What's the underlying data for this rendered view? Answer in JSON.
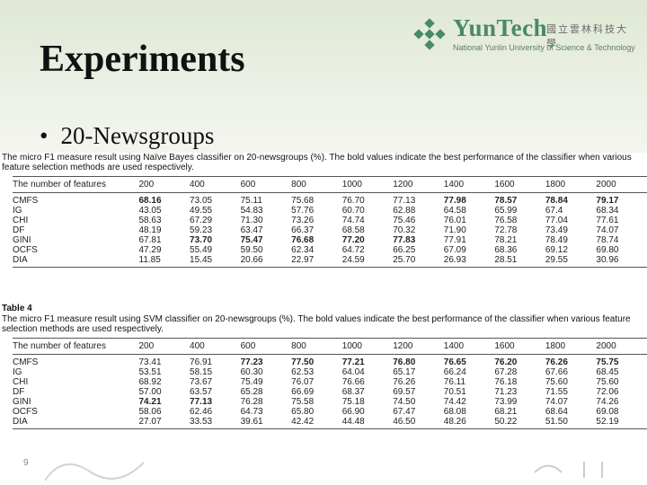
{
  "slide": {
    "title": "Experiments",
    "bullet": "20-Newsgroups",
    "page_number": "9",
    "logo": {
      "brand": "YunTech",
      "chinese": "國立雲林科技大學",
      "english": "National Yunlin University of Science & Technology"
    }
  },
  "table1": {
    "label": "",
    "caption": "The micro F1 measure result using Naïve Bayes classifier on 20-newsgroups (%). The bold values indicate the best performance of the classifier when various feature selection methods are used respectively.",
    "columns": [
      "The number of features",
      "200",
      "400",
      "600",
      "800",
      "1000",
      "1200",
      "1400",
      "1600",
      "1800",
      "2000"
    ],
    "rows": [
      {
        "method": "CMFS",
        "values": [
          "68.16",
          "73.05",
          "75.11",
          "75.68",
          "76.70",
          "77.13",
          "77.98",
          "78.57",
          "78.84",
          "79.17"
        ],
        "bold": [
          true,
          false,
          false,
          false,
          false,
          false,
          true,
          true,
          true,
          true
        ]
      },
      {
        "method": "IG",
        "values": [
          "43.05",
          "49.55",
          "54.83",
          "57.76",
          "60.70",
          "62.88",
          "64.58",
          "65.99",
          "67.4",
          "68.34"
        ],
        "bold": [
          false,
          false,
          false,
          false,
          false,
          false,
          false,
          false,
          false,
          false
        ]
      },
      {
        "method": "CHI",
        "values": [
          "58.63",
          "67.29",
          "71.30",
          "73.26",
          "74.74",
          "75.46",
          "76.01",
          "76.58",
          "77.04",
          "77.61"
        ],
        "bold": [
          false,
          false,
          false,
          false,
          false,
          false,
          false,
          false,
          false,
          false
        ]
      },
      {
        "method": "DF",
        "values": [
          "48.19",
          "59.23",
          "63.47",
          "66.37",
          "68.58",
          "70.32",
          "71.90",
          "72.78",
          "73.49",
          "74.07"
        ],
        "bold": [
          false,
          false,
          false,
          false,
          false,
          false,
          false,
          false,
          false,
          false
        ]
      },
      {
        "method": "GINI",
        "values": [
          "67.81",
          "73.70",
          "75.47",
          "76.68",
          "77.20",
          "77.83",
          "77.91",
          "78.21",
          "78.49",
          "78.74"
        ],
        "bold": [
          false,
          true,
          true,
          true,
          true,
          true,
          false,
          false,
          false,
          false
        ]
      },
      {
        "method": "OCFS",
        "values": [
          "47.29",
          "55.49",
          "59.50",
          "62.34",
          "64.72",
          "66.25",
          "67.09",
          "68.36",
          "69.12",
          "69.80"
        ],
        "bold": [
          false,
          false,
          false,
          false,
          false,
          false,
          false,
          false,
          false,
          false
        ]
      },
      {
        "method": "DIA",
        "values": [
          "11.85",
          "15.45",
          "20.66",
          "22.97",
          "24.59",
          "25.70",
          "26.93",
          "28.51",
          "29.55",
          "30.96"
        ],
        "bold": [
          false,
          false,
          false,
          false,
          false,
          false,
          false,
          false,
          false,
          false
        ]
      }
    ]
  },
  "table2": {
    "label": "Table 4",
    "caption": "The micro F1 measure result using SVM classifier on 20-newsgroups (%). The bold values indicate the best performance of the classifier when various feature selection methods are used respectively.",
    "columns": [
      "The number of features",
      "200",
      "400",
      "600",
      "800",
      "1000",
      "1200",
      "1400",
      "1600",
      "1800",
      "2000"
    ],
    "rows": [
      {
        "method": "CMFS",
        "values": [
          "73.41",
          "76.91",
          "77.23",
          "77.50",
          "77.21",
          "76.80",
          "76.65",
          "76.20",
          "76.26",
          "75.75"
        ],
        "bold": [
          false,
          false,
          true,
          true,
          true,
          true,
          true,
          true,
          true,
          true
        ]
      },
      {
        "method": "IG",
        "values": [
          "53.51",
          "58.15",
          "60.30",
          "62.53",
          "64.04",
          "65.17",
          "66.24",
          "67.28",
          "67.66",
          "68.45"
        ],
        "bold": [
          false,
          false,
          false,
          false,
          false,
          false,
          false,
          false,
          false,
          false
        ]
      },
      {
        "method": "CHI",
        "values": [
          "68.92",
          "73.67",
          "75.49",
          "76.07",
          "76.66",
          "76.26",
          "76.11",
          "76.18",
          "75.60",
          "75.60"
        ],
        "bold": [
          false,
          false,
          false,
          false,
          false,
          false,
          false,
          false,
          false,
          false
        ]
      },
      {
        "method": "DF",
        "values": [
          "57.00",
          "63.57",
          "65.28",
          "66.69",
          "68.37",
          "69.57",
          "70.51",
          "71.23",
          "71.55",
          "72.06"
        ],
        "bold": [
          false,
          false,
          false,
          false,
          false,
          false,
          false,
          false,
          false,
          false
        ]
      },
      {
        "method": "GINI",
        "values": [
          "74.21",
          "77.13",
          "76.28",
          "75.58",
          "75.18",
          "74.50",
          "74.42",
          "73.99",
          "74.07",
          "74.26"
        ],
        "bold": [
          true,
          true,
          false,
          false,
          false,
          false,
          false,
          false,
          false,
          false
        ]
      },
      {
        "method": "OCFS",
        "values": [
          "58.06",
          "62.46",
          "64.73",
          "65.80",
          "66.90",
          "67.47",
          "68.08",
          "68.21",
          "68.64",
          "69.08"
        ],
        "bold": [
          false,
          false,
          false,
          false,
          false,
          false,
          false,
          false,
          false,
          false
        ]
      },
      {
        "method": "DIA",
        "values": [
          "27.07",
          "33.53",
          "39.61",
          "42.42",
          "44.48",
          "46.50",
          "48.26",
          "50.22",
          "51.50",
          "52.19"
        ],
        "bold": [
          false,
          false,
          false,
          false,
          false,
          false,
          false,
          false,
          false,
          false
        ]
      }
    ]
  }
}
